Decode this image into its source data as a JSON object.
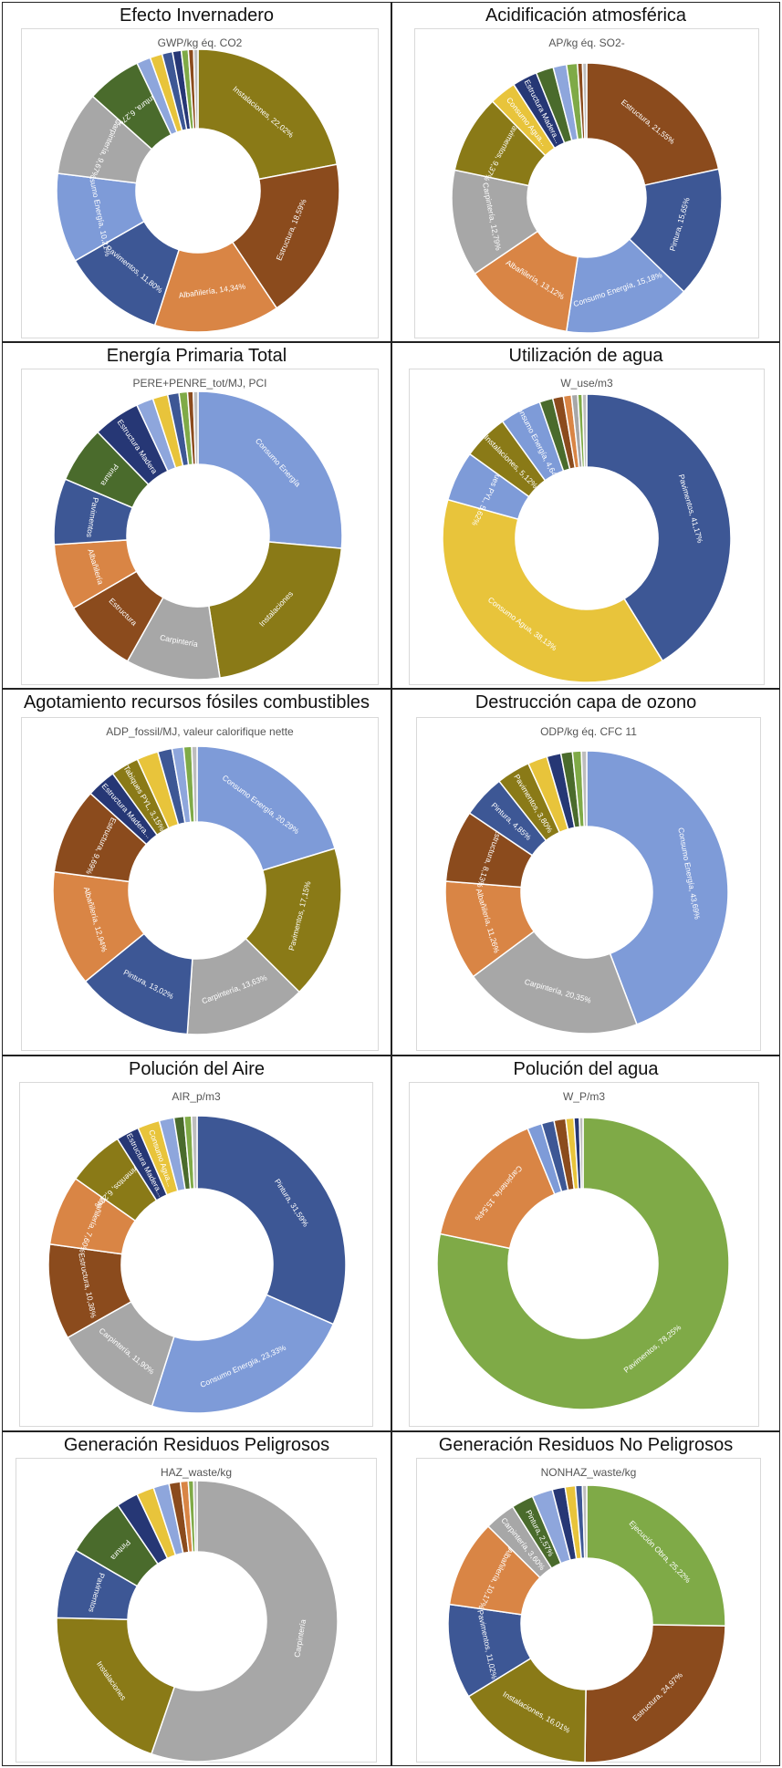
{
  "colors": {
    "olive": "#8a7a17",
    "brown": "#8b4b1d",
    "orange": "#d98545",
    "darkblue": "#3d5795",
    "lightblue": "#7e9bd8",
    "gray": "#a7a7a7",
    "green": "#4a6b2c",
    "mustard": "#e8c43b",
    "navy": "#263775",
    "lime": "#7faa47",
    "pale": "#bdbdbd"
  },
  "chart_data": [
    {
      "type": "pie",
      "title": "Efecto Invernadero",
      "subtitle": "GWP/kg éq. CO2",
      "slices": [
        {
          "label": "Instalaciones, 22,02%",
          "value": 22.02,
          "color": "#8a7a17"
        },
        {
          "label": "Estructura, 18,59%",
          "value": 18.59,
          "color": "#8b4b1d"
        },
        {
          "label": "Albañilería, 14,34%",
          "value": 14.34,
          "color": "#d98545"
        },
        {
          "label": "Pavimentos, 11,80%",
          "value": 11.8,
          "color": "#3d5795"
        },
        {
          "label": "Consumo Energía, 10,21%",
          "value": 10.21,
          "color": "#7e9bd8"
        },
        {
          "label": "Carpintería, 9,67%",
          "value": 9.67,
          "color": "#a7a7a7"
        },
        {
          "label": "Pintura, 6,27%",
          "value": 6.27,
          "color": "#4a6b2c"
        },
        {
          "label": "",
          "value": 1.6,
          "color": "#8ea6dc"
        },
        {
          "label": "",
          "value": 1.4,
          "color": "#e8c43b"
        },
        {
          "label": "",
          "value": 1.2,
          "color": "#3d5795"
        },
        {
          "label": "",
          "value": 1.0,
          "color": "#263775"
        },
        {
          "label": "",
          "value": 0.8,
          "color": "#7faa47"
        },
        {
          "label": "",
          "value": 0.6,
          "color": "#8b4b1d"
        },
        {
          "label": "",
          "value": 0.5,
          "color": "#bdbdbd"
        }
      ]
    },
    {
      "type": "pie",
      "title": "Acidificación atmosférica",
      "subtitle": "AP/kg éq. SO2-",
      "slices": [
        {
          "label": "Estructura, 21,55%",
          "value": 21.55,
          "color": "#8b4b1d"
        },
        {
          "label": "Pintura, 15,65%",
          "value": 15.65,
          "color": "#3d5795"
        },
        {
          "label": "Consumo Energía, 15,18%",
          "value": 15.18,
          "color": "#7e9bd8"
        },
        {
          "label": "Albañilería, 13,12%",
          "value": 13.12,
          "color": "#d98545"
        },
        {
          "label": "Carpintería, 12,79%",
          "value": 12.79,
          "color": "#a7a7a7"
        },
        {
          "label": "Pavimentos, 9,37%",
          "value": 9.37,
          "color": "#8a7a17"
        },
        {
          "label": "Consumo Agua...",
          "value": 3.2,
          "color": "#e8c43b"
        },
        {
          "label": "Estructura Madera...",
          "value": 3.0,
          "color": "#263775"
        },
        {
          "label": "",
          "value": 2.1,
          "color": "#4a6b2c"
        },
        {
          "label": "",
          "value": 1.6,
          "color": "#8ea6dc"
        },
        {
          "label": "",
          "value": 1.3,
          "color": "#7faa47"
        },
        {
          "label": "",
          "value": 0.6,
          "color": "#8b4b1d"
        },
        {
          "label": "",
          "value": 0.5,
          "color": "#bdbdbd"
        }
      ]
    },
    {
      "type": "pie",
      "title": "Energía Primaria Total",
      "subtitle": "PERE+PENRE_tot/MJ, PCI",
      "slices": [
        {
          "label": "Consumo Energía",
          "value": 25.0,
          "color": "#7e9bd8"
        },
        {
          "label": "Instalaciones",
          "value": 20.0,
          "color": "#8a7a17"
        },
        {
          "label": "Carpintería",
          "value": 10.0,
          "color": "#a7a7a7"
        },
        {
          "label": "Estructura",
          "value": 8.0,
          "color": "#8b4b1d"
        },
        {
          "label": "Albañilería",
          "value": 7.0,
          "color": "#d98545"
        },
        {
          "label": "Pavimentos",
          "value": 7.0,
          "color": "#3d5795"
        },
        {
          "label": "Pintura",
          "value": 6.0,
          "color": "#4a6b2c"
        },
        {
          "label": "Estructura Madera",
          "value": 5.0,
          "color": "#263775"
        },
        {
          "label": "",
          "value": 1.8,
          "color": "#8ea6dc"
        },
        {
          "label": "",
          "value": 1.6,
          "color": "#e8c43b"
        },
        {
          "label": "",
          "value": 1.2,
          "color": "#3d5795"
        },
        {
          "label": "",
          "value": 0.9,
          "color": "#7faa47"
        },
        {
          "label": "",
          "value": 0.6,
          "color": "#8b4b1d"
        },
        {
          "label": "",
          "value": 0.5,
          "color": "#bdbdbd"
        }
      ]
    },
    {
      "type": "pie",
      "title": "Utilización de agua",
      "subtitle": "W_use/m3",
      "slices": [
        {
          "label": "Pavimentos, 41,17%",
          "value": 41.17,
          "color": "#3d5795"
        },
        {
          "label": "Consumo Agua, 38,13%",
          "value": 38.13,
          "color": "#e8c43b"
        },
        {
          "label": "Tabiques PYL, 5,62%",
          "value": 5.62,
          "color": "#7e9bd8"
        },
        {
          "label": "Instalaciones, 5,12%",
          "value": 5.12,
          "color": "#8a7a17"
        },
        {
          "label": "Consumo Energía, 4,64%",
          "value": 4.64,
          "color": "#7e9bd8"
        },
        {
          "label": "",
          "value": 1.5,
          "color": "#4a6b2c"
        },
        {
          "label": "",
          "value": 1.2,
          "color": "#8b4b1d"
        },
        {
          "label": "",
          "value": 0.9,
          "color": "#d98545"
        },
        {
          "label": "",
          "value": 0.7,
          "color": "#a7a7a7"
        },
        {
          "label": "",
          "value": 0.5,
          "color": "#7faa47"
        },
        {
          "label": "",
          "value": 0.5,
          "color": "#bdbdbd"
        }
      ]
    },
    {
      "type": "pie",
      "title": "Agotamiento recursos fósiles combustibles",
      "subtitle": "ADP_fossil/MJ, valeur calorifique nette",
      "slices": [
        {
          "label": "Consumo Energía, 20,29%",
          "value": 20.29,
          "color": "#7e9bd8"
        },
        {
          "label": "Pavimentos, 17,15%",
          "value": 17.15,
          "color": "#8a7a17"
        },
        {
          "label": "Carpintería, 13,63%",
          "value": 13.63,
          "color": "#a7a7a7"
        },
        {
          "label": "Pintura, 13,02%",
          "value": 13.02,
          "color": "#3d5795"
        },
        {
          "label": "Albañilería, 12,94%",
          "value": 12.94,
          "color": "#d98545"
        },
        {
          "label": "Estructura, 9,69%",
          "value": 9.69,
          "color": "#8b4b1d"
        },
        {
          "label": "Estructura Madera...",
          "value": 3.3,
          "color": "#263775"
        },
        {
          "label": "Tabiques PYL, 3,15%",
          "value": 3.15,
          "color": "#8a7a17"
        },
        {
          "label": "",
          "value": 2.4,
          "color": "#e8c43b"
        },
        {
          "label": "",
          "value": 1.6,
          "color": "#3d5795"
        },
        {
          "label": "",
          "value": 1.3,
          "color": "#8ea6dc"
        },
        {
          "label": "",
          "value": 0.9,
          "color": "#7faa47"
        },
        {
          "label": "",
          "value": 0.6,
          "color": "#bdbdbd"
        }
      ]
    },
    {
      "type": "pie",
      "title": "Destrucción capa de ozono",
      "subtitle": "ODP/kg éq. CFC 11",
      "slices": [
        {
          "label": "Consumo Energía, 43,69%",
          "value": 43.69,
          "color": "#7e9bd8"
        },
        {
          "label": "Carpintería, 20,35%",
          "value": 20.35,
          "color": "#a7a7a7"
        },
        {
          "label": "Albañilería, 11,26%",
          "value": 11.26,
          "color": "#d98545"
        },
        {
          "label": "Estructura, 8,13%",
          "value": 8.13,
          "color": "#8b4b1d"
        },
        {
          "label": "Pintura, 4,85%",
          "value": 4.85,
          "color": "#3d5795"
        },
        {
          "label": "Pavimentos, 3,80%",
          "value": 3.8,
          "color": "#8a7a17"
        },
        {
          "label": "",
          "value": 2.2,
          "color": "#e8c43b"
        },
        {
          "label": "",
          "value": 1.6,
          "color": "#263775"
        },
        {
          "label": "",
          "value": 1.3,
          "color": "#4a6b2c"
        },
        {
          "label": "",
          "value": 1.0,
          "color": "#7faa47"
        },
        {
          "label": "",
          "value": 0.6,
          "color": "#bdbdbd"
        }
      ]
    },
    {
      "type": "pie",
      "title": "Polución del Aire",
      "subtitle": "AIR_p/m3",
      "slices": [
        {
          "label": "Pintura, 31,59%",
          "value": 31.59,
          "color": "#3d5795"
        },
        {
          "label": "Consumo Energía, 23,33%",
          "value": 23.33,
          "color": "#7e9bd8"
        },
        {
          "label": "Carpintería, 11,90%",
          "value": 11.9,
          "color": "#a7a7a7"
        },
        {
          "label": "Estructura, 10,38%",
          "value": 10.38,
          "color": "#8b4b1d"
        },
        {
          "label": "Albañilería, 7,60%",
          "value": 7.6,
          "color": "#d98545"
        },
        {
          "label": "Pavimentos, 6,22%",
          "value": 6.22,
          "color": "#8a7a17"
        },
        {
          "label": "Estructura Madera...",
          "value": 2.5,
          "color": "#263775"
        },
        {
          "label": "Consumo Agua...",
          "value": 2.4,
          "color": "#e8c43b"
        },
        {
          "label": "",
          "value": 1.6,
          "color": "#8ea6dc"
        },
        {
          "label": "",
          "value": 1.1,
          "color": "#4a6b2c"
        },
        {
          "label": "",
          "value": 0.8,
          "color": "#7faa47"
        },
        {
          "label": "",
          "value": 0.6,
          "color": "#bdbdbd"
        }
      ]
    },
    {
      "type": "pie",
      "title": "Polución del agua",
      "subtitle": "W_P/m3",
      "slices": [
        {
          "label": "Pavimentos, 78,25%",
          "value": 78.25,
          "color": "#7faa47"
        },
        {
          "label": "Carpintería, 15,54%",
          "value": 15.54,
          "color": "#d98545"
        },
        {
          "label": "",
          "value": 1.6,
          "color": "#7e9bd8"
        },
        {
          "label": "",
          "value": 1.4,
          "color": "#3d5795"
        },
        {
          "label": "",
          "value": 1.3,
          "color": "#8b4b1d"
        },
        {
          "label": "",
          "value": 0.9,
          "color": "#e8c43b"
        },
        {
          "label": "",
          "value": 0.6,
          "color": "#263775"
        },
        {
          "label": "",
          "value": 0.4,
          "color": "#bdbdbd"
        }
      ]
    },
    {
      "type": "pie",
      "title": "Generación Residuos Peligrosos",
      "subtitle": "HAZ_waste/kg",
      "slices": [
        {
          "label": "Carpintería",
          "value": 55.0,
          "color": "#a7a7a7"
        },
        {
          "label": "Instalaciones",
          "value": 20.0,
          "color": "#8a7a17"
        },
        {
          "label": "Pavimentos",
          "value": 8.0,
          "color": "#3d5795"
        },
        {
          "label": "Pintura",
          "value": 7.0,
          "color": "#4a6b2c"
        },
        {
          "label": "",
          "value": 2.5,
          "color": "#263775"
        },
        {
          "label": "",
          "value": 2.0,
          "color": "#e8c43b"
        },
        {
          "label": "",
          "value": 1.8,
          "color": "#8ea6dc"
        },
        {
          "label": "",
          "value": 1.3,
          "color": "#8b4b1d"
        },
        {
          "label": "",
          "value": 0.9,
          "color": "#d98545"
        },
        {
          "label": "",
          "value": 0.6,
          "color": "#7faa47"
        },
        {
          "label": "",
          "value": 0.4,
          "color": "#bdbdbd"
        }
      ]
    },
    {
      "type": "pie",
      "title": "Generación Residuos No Peligrosos",
      "subtitle": "NONHAZ_waste/kg",
      "slices": [
        {
          "label": "Ejecución Obra, 25,22%",
          "value": 25.22,
          "color": "#7faa47"
        },
        {
          "label": "Estructura, 24,97%",
          "value": 24.97,
          "color": "#8b4b1d"
        },
        {
          "label": "Instalaciones, 16,01%",
          "value": 16.01,
          "color": "#8a7a17"
        },
        {
          "label": "Pavimentos, 11,02%",
          "value": 11.02,
          "color": "#3d5795"
        },
        {
          "label": "Albañilería, 10,17%",
          "value": 10.17,
          "color": "#d98545"
        },
        {
          "label": "Carpintería, 3,60%",
          "value": 3.6,
          "color": "#a7a7a7"
        },
        {
          "label": "Pintura, 2,57%",
          "value": 2.57,
          "color": "#4a6b2c"
        },
        {
          "label": "",
          "value": 2.4,
          "color": "#8ea6dc"
        },
        {
          "label": "",
          "value": 1.5,
          "color": "#263775"
        },
        {
          "label": "",
          "value": 1.2,
          "color": "#e8c43b"
        },
        {
          "label": "",
          "value": 0.8,
          "color": "#3d5795"
        },
        {
          "label": "",
          "value": 0.5,
          "color": "#bdbdbd"
        }
      ]
    }
  ]
}
